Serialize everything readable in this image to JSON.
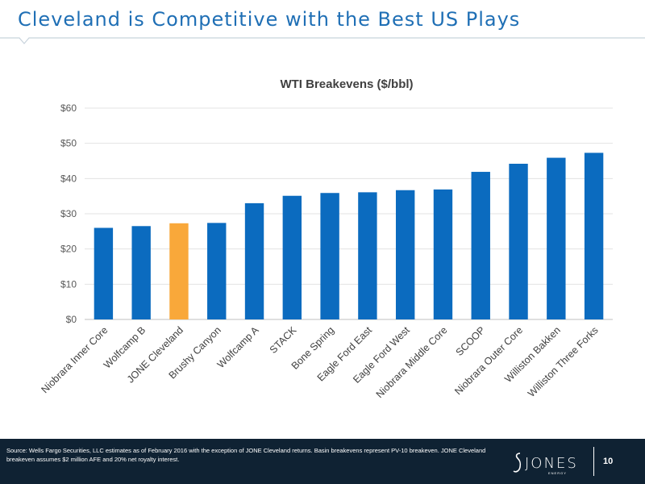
{
  "slide": {
    "title": "Cleveland is Competitive with the Best US Plays",
    "title_color": "#1f6fb5",
    "page_number": "10",
    "source_note": "Source: Wells Fargo Securities, LLC estimates as of February 2016 with the exception of JONE Cleveland returns.  Basin breakevens represent PV-10 breakeven. JONE Cleveland breakeven assumes $2 million AFE and 20% net royalty interest.",
    "logo_text": "JONES",
    "logo_subtext": "ENERGY"
  },
  "chart_data": {
    "type": "bar",
    "title": "WTI Breakevens ($/bbl)",
    "xlabel": "",
    "ylabel": "",
    "ylim": [
      0,
      60
    ],
    "yticks": [
      0,
      10,
      20,
      30,
      40,
      50,
      60
    ],
    "ytick_labels": [
      "$0",
      "$10",
      "$20",
      "$30",
      "$40",
      "$50",
      "$60"
    ],
    "grid": true,
    "legend": "none",
    "bar_color": "#0b6bbf",
    "highlight_color": "#f9a83a",
    "highlight_category": "JONE Cleveland",
    "categories": [
      "Niobrara Inner Core",
      "Wolfcamp B",
      "JONE Cleveland",
      "Brushy Canyon",
      "Wolfcamp A",
      "STACK",
      "Bone Spring",
      "Eagle Ford East",
      "Eagle Ford West",
      "Niobrara Middle Core",
      "SCOOP",
      "Niobrara Outer Core",
      "Williston Bakken",
      "Williston Three Forks"
    ],
    "values": [
      26,
      26.5,
      27.3,
      27.4,
      33,
      35.1,
      35.9,
      36.1,
      36.7,
      36.9,
      41.9,
      44.2,
      45.9,
      47.3
    ]
  }
}
